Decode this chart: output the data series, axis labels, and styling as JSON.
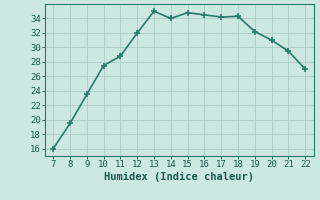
{
  "x": [
    7,
    8,
    9,
    10,
    11,
    12,
    13,
    14,
    15,
    16,
    17,
    18,
    19,
    20,
    21,
    22
  ],
  "y": [
    16,
    19.5,
    23.5,
    27.5,
    28.8,
    32,
    35,
    34,
    34.8,
    34.5,
    34.2,
    34.3,
    32.2,
    31,
    29.5,
    27
  ],
  "line_color": "#2a7a6e",
  "marker": "+",
  "marker_size": 4,
  "marker_linewidth": 1.2,
  "bg_color": "#cce8e2",
  "grid_color": "#aacfc8",
  "xlabel": "Humidex (Indice chaleur)",
  "xlim": [
    6.5,
    22.5
  ],
  "ylim": [
    15,
    36
  ],
  "xticks": [
    7,
    8,
    9,
    10,
    11,
    12,
    13,
    14,
    15,
    16,
    17,
    18,
    19,
    20,
    21,
    22
  ],
  "yticks": [
    16,
    18,
    20,
    22,
    24,
    26,
    28,
    30,
    32,
    34
  ],
  "tick_color": "#1a5a50",
  "font_size": 6.5,
  "xlabel_fontsize": 7.5,
  "linewidth": 1.2
}
